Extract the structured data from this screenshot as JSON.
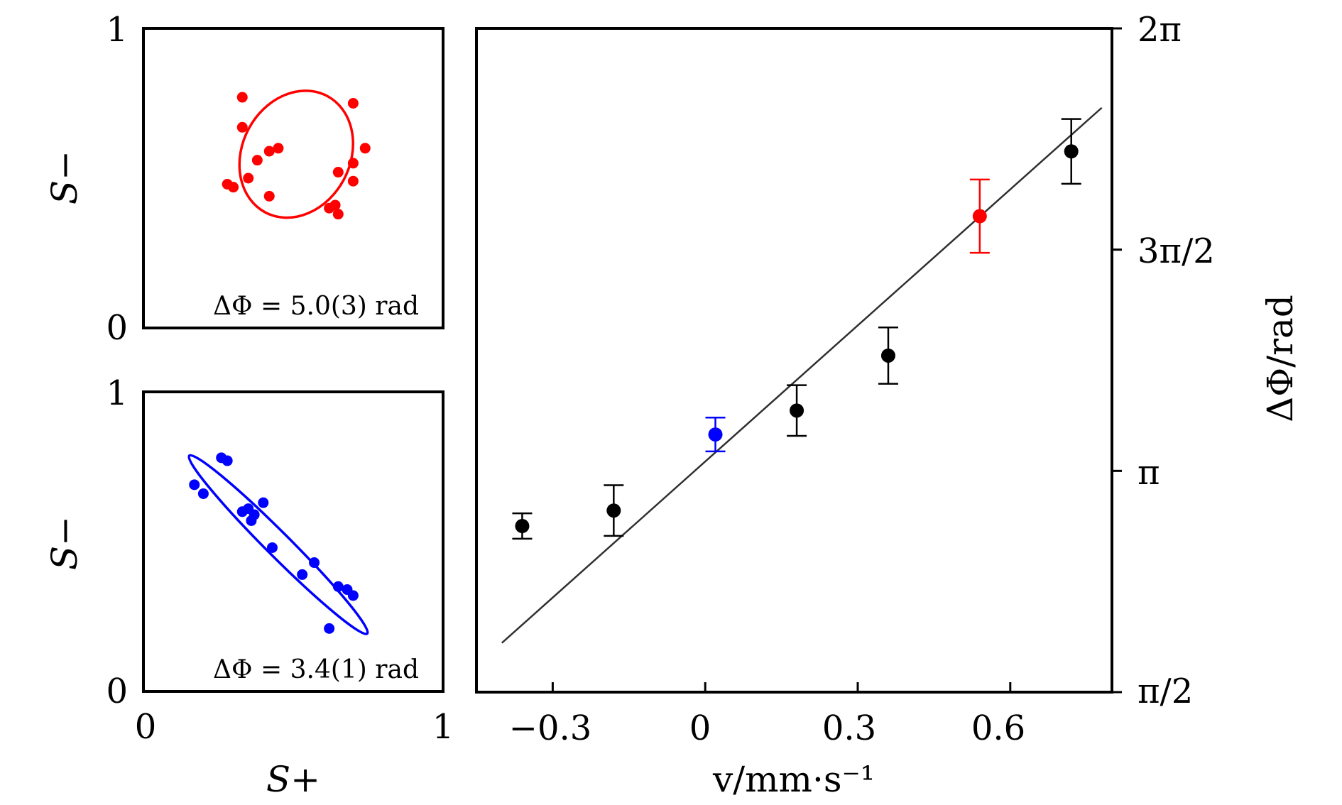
{
  "colors": {
    "black": "#000000",
    "red": "#ff0000",
    "blue": "#0000ff",
    "fit": "#303030"
  },
  "chart_data": [
    {
      "id": "inset_top",
      "type": "scatter",
      "xlim": [
        0,
        1
      ],
      "ylim": [
        0,
        1
      ],
      "xlabel": "",
      "ylabel": "S−",
      "xtick_labels": [],
      "ytick_labels": [
        "0",
        "1"
      ],
      "annotation": "ΔΦ = 5.0(3) rad",
      "color": "#ff0000",
      "points": [
        [
          0.33,
          0.77
        ],
        [
          0.33,
          0.67
        ],
        [
          0.42,
          0.59
        ],
        [
          0.45,
          0.6
        ],
        [
          0.38,
          0.56
        ],
        [
          0.7,
          0.75
        ],
        [
          0.74,
          0.6
        ],
        [
          0.7,
          0.55
        ],
        [
          0.65,
          0.52
        ],
        [
          0.7,
          0.49
        ],
        [
          0.3,
          0.47
        ],
        [
          0.35,
          0.5
        ],
        [
          0.42,
          0.44
        ],
        [
          0.62,
          0.4
        ],
        [
          0.64,
          0.41
        ],
        [
          0.28,
          0.48
        ],
        [
          0.65,
          0.38
        ]
      ],
      "fit_ellipse": {
        "center": [
          0.51,
          0.58
        ],
        "semi_axes": [
          0.22,
          0.18
        ],
        "rotation_deg": 62
      }
    },
    {
      "id": "inset_bottom",
      "type": "scatter",
      "xlim": [
        0,
        1
      ],
      "ylim": [
        0,
        1
      ],
      "xlabel": "S+",
      "ylabel": "S−",
      "xtick_labels": [
        "0",
        "1"
      ],
      "ytick_labels": [
        "0",
        "1"
      ],
      "annotation": "ΔΦ = 3.4(1) rad",
      "color": "#0000ff",
      "points": [
        [
          0.26,
          0.78
        ],
        [
          0.28,
          0.77
        ],
        [
          0.17,
          0.69
        ],
        [
          0.2,
          0.66
        ],
        [
          0.33,
          0.6
        ],
        [
          0.35,
          0.61
        ],
        [
          0.37,
          0.59
        ],
        [
          0.4,
          0.63
        ],
        [
          0.36,
          0.57
        ],
        [
          0.43,
          0.48
        ],
        [
          0.53,
          0.39
        ],
        [
          0.57,
          0.43
        ],
        [
          0.62,
          0.21
        ],
        [
          0.65,
          0.35
        ],
        [
          0.68,
          0.34
        ],
        [
          0.7,
          0.32
        ]
      ],
      "fit_ellipse": {
        "center": [
          0.45,
          0.49
        ],
        "semi_axes": [
          0.42,
          0.04
        ],
        "rotation_deg": -45
      }
    },
    {
      "id": "main",
      "type": "scatter",
      "xlabel": "v/mm·s⁻¹",
      "ylabel": "ΔΦ/rad",
      "xlim": [
        -0.45,
        0.8
      ],
      "ylim": [
        1.5708,
        6.2832
      ],
      "xticks": [
        -0.3,
        0,
        0.3,
        0.6
      ],
      "xtick_labels": [
        "−0.3",
        "0",
        "0.3",
        "0.6"
      ],
      "yticks": [
        1.5708,
        3.1416,
        4.7124,
        6.2832
      ],
      "ytick_labels": [
        "π/2",
        "π",
        "3π/2",
        "2π"
      ],
      "y_axis_side": "right",
      "points": [
        {
          "x": -0.36,
          "y": 2.75,
          "err": 0.09,
          "color": "#000000"
        },
        {
          "x": -0.18,
          "y": 2.86,
          "err": 0.18,
          "color": "#000000"
        },
        {
          "x": 0.02,
          "y": 3.4,
          "err": 0.12,
          "color": "#0000ff"
        },
        {
          "x": 0.18,
          "y": 3.57,
          "err": 0.18,
          "color": "#000000"
        },
        {
          "x": 0.36,
          "y": 3.96,
          "err": 0.2,
          "color": "#000000"
        },
        {
          "x": 0.54,
          "y": 4.95,
          "err": 0.26,
          "color": "#ff0000"
        },
        {
          "x": 0.72,
          "y": 5.41,
          "err": 0.23,
          "color": "#000000"
        }
      ],
      "fit_line": {
        "x": [
          -0.4,
          0.78
        ],
        "y": [
          1.92,
          5.72
        ]
      }
    }
  ]
}
